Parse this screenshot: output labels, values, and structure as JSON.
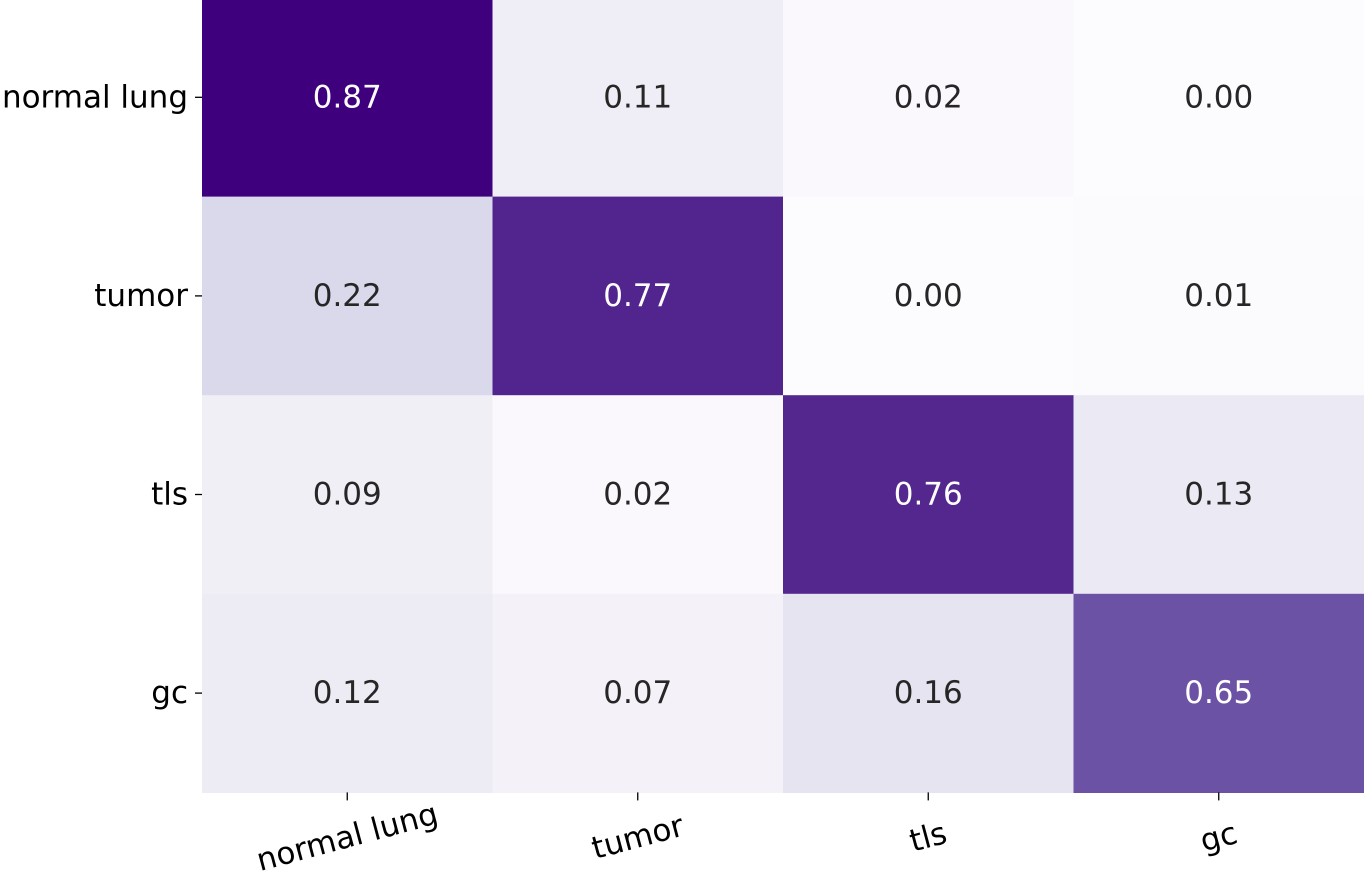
{
  "chart_data": {
    "type": "heatmap",
    "title": "",
    "xlabel": "",
    "ylabel": "",
    "rows": [
      "normal lung",
      "tumor",
      "tls",
      "gc"
    ],
    "columns": [
      "normal lung",
      "tumor",
      "tls",
      "gc"
    ],
    "values": [
      [
        0.87,
        0.11,
        0.02,
        0.0
      ],
      [
        0.22,
        0.77,
        0.0,
        0.01
      ],
      [
        0.09,
        0.02,
        0.76,
        0.13
      ],
      [
        0.12,
        0.07,
        0.16,
        0.65
      ]
    ],
    "value_format": "0.00",
    "colormap": "Purples",
    "vmin": 0.0,
    "vmax": 0.87,
    "colorbar": false,
    "grid": false
  }
}
